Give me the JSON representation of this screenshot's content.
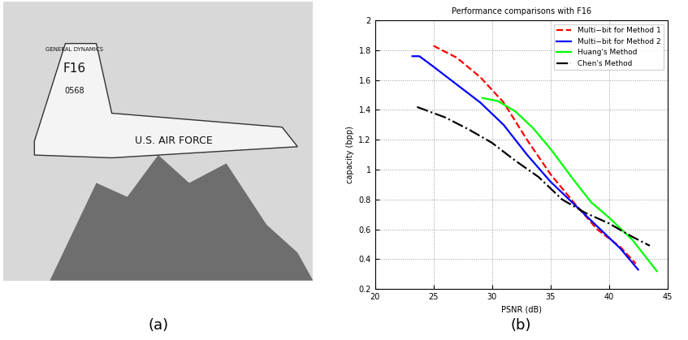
{
  "captions": [
    "(a)",
    "(b)"
  ],
  "photo": {
    "texts": [
      "GENERAL DYNAMICS",
      "F16",
      "0568",
      "U.S. AIR FORCE"
    ]
  },
  "chart_data": {
    "type": "line",
    "title": "Performance comparisons with F16",
    "x_label": "PSNR (dB)",
    "y_label": "capacity (bpp)",
    "xlim": [
      20,
      45
    ],
    "xticks": [
      20,
      25,
      30,
      35,
      40,
      45
    ],
    "ylim": [
      0.2,
      2
    ],
    "yticks": [
      0.2,
      0.4,
      0.6,
      0.8,
      1,
      1.2,
      1.4,
      1.6,
      1.8,
      2
    ],
    "grid": true,
    "legend": "upper right",
    "series": [
      {
        "name": "Multi−bit for Method 1",
        "color": "#ff0000",
        "line_style": "dashed",
        "x": [
          25,
          27,
          29,
          31,
          33,
          35,
          37,
          39,
          41,
          42.3
        ],
        "values": [
          1.83,
          1.75,
          1.62,
          1.45,
          1.2,
          0.97,
          0.78,
          0.6,
          0.48,
          0.37
        ]
      },
      {
        "name": "Multi−bit for Method 2",
        "color": "#0000ff",
        "line_style": "solid",
        "x": [
          23.2,
          23.8,
          25,
          27,
          29,
          31,
          33,
          35,
          37,
          39,
          41,
          42.5
        ],
        "values": [
          1.76,
          1.76,
          1.69,
          1.57,
          1.45,
          1.3,
          1.1,
          0.92,
          0.77,
          0.62,
          0.47,
          0.33
        ]
      },
      {
        "name": "Huang's Method",
        "color": "#00ff00",
        "line_style": "solid",
        "x": [
          29.2,
          30.5,
          32,
          33.5,
          35,
          37,
          38.5,
          40,
          42,
          43,
          44.1
        ],
        "values": [
          1.48,
          1.46,
          1.39,
          1.28,
          1.14,
          0.93,
          0.78,
          0.68,
          0.53,
          0.43,
          0.32
        ]
      },
      {
        "name": "Chen's Method",
        "color": "#000000",
        "line_style": "dashdot",
        "x": [
          23.6,
          26,
          28,
          30,
          32,
          34,
          36,
          38,
          40,
          42,
          43.5
        ],
        "values": [
          1.42,
          1.35,
          1.27,
          1.18,
          1.06,
          0.95,
          0.8,
          0.71,
          0.64,
          0.55,
          0.49
        ]
      }
    ]
  }
}
